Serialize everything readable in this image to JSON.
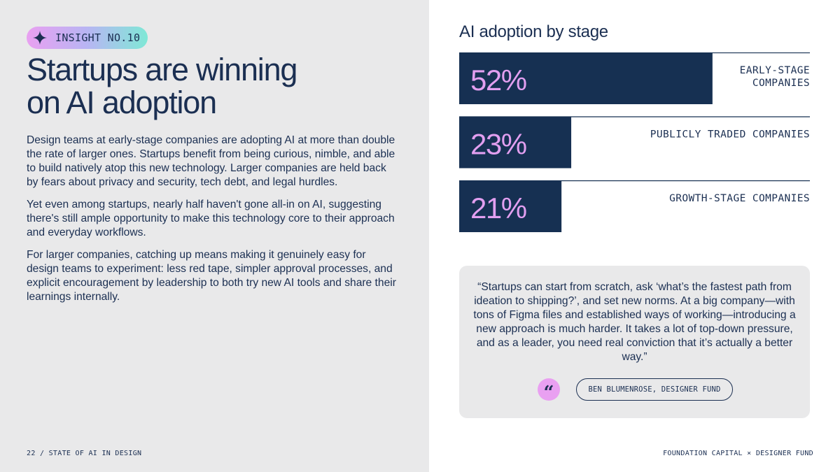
{
  "badge": {
    "icon": "sparkle-icon",
    "label": "INSIGHT NO.10"
  },
  "headline": {
    "line1": "Startups are winning",
    "line2": "on AI adoption"
  },
  "body": {
    "paragraphs": [
      "Design teams at early-stage companies are adopting AI at more than double the rate of larger ones. Startups benefit from being curious, nimble, and able to build natively atop this new technology. Larger companies are held back by fears about privacy and security, tech debt, and legal hurdles.",
      "Yet even among startups, nearly half haven't gone all-in on AI, suggesting there's still ample opportunity to make this technology core to their approach and everyday workflows.",
      "For larger companies, catching up means making it genuinely easy for design teams to experiment: less red tape, simpler approval processes, and explicit encouragement by leadership to both try new AI tools and share their learnings internally."
    ]
  },
  "footer": {
    "left": "22 / STATE OF AI IN DESIGN",
    "right": "FOUNDATION CAPITAL × DESIGNER FUND"
  },
  "chart_data": {
    "type": "bar",
    "orientation": "horizontal",
    "title": "AI adoption by stage",
    "categories": [
      "EARLY-STAGE COMPANIES",
      "PUBLICLY TRADED COMPANIES",
      "GROWTH-STAGE COMPANIES"
    ],
    "category_lines": [
      [
        "EARLY-STAGE",
        "COMPANIES"
      ],
      [
        "PUBLICLY TRADED COMPANIES"
      ],
      [
        "GROWTH-STAGE COMPANIES"
      ]
    ],
    "values": [
      52,
      23,
      21
    ],
    "value_labels": [
      "52%",
      "23%",
      "21%"
    ],
    "unit": "%",
    "xlim": [
      0,
      72
    ],
    "grid": false,
    "colors": {
      "bar": "#163052",
      "label": "#e29ff0",
      "rule": "#163052"
    }
  },
  "quote": {
    "text": "“Startups can start from scratch, ask ‘what’s the fastest path from ideation to shipping?’, and set new norms. At a big company—with tons of Figma files and established ways of working—introducing a new approach is much harder. It takes a lot of top-down pressure, and as  a leader, you need real conviction that it’s actually a better way.”",
    "icon": "quote-mark-icon",
    "icon_glyph": "“",
    "attribution": "BEN BLUMENROSE, DESIGNER FUND"
  },
  "colors": {
    "navy": "#1b2f52",
    "panel": "#e9e9ea",
    "pink": "#e9a0f1",
    "teal": "#7fe8d6"
  }
}
